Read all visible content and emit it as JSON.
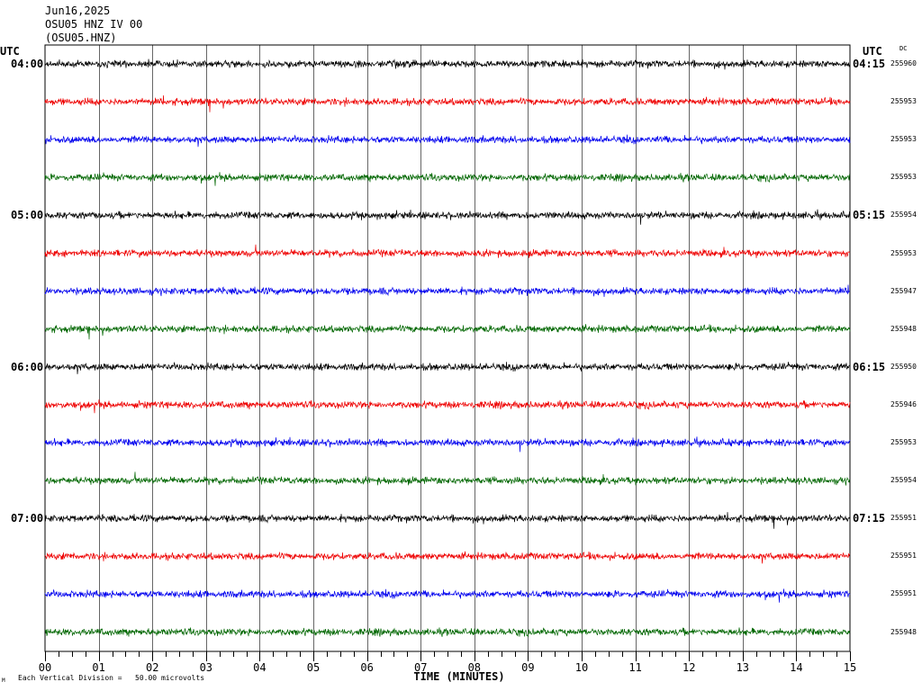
{
  "header": {
    "date": "Jun16,2025",
    "station": "OSU05 HNZ IV 00",
    "code": "(OSU05.HNZ)"
  },
  "left_axis_label": "UTC",
  "right_axis_label": "UTC",
  "dc_label": "DC",
  "footer": {
    "left_mark": "M",
    "scale_text": "Each Vertical Division =   50.00 microvolts"
  },
  "chart_data": {
    "type": "line",
    "xlabel": "TIME (MINUTES)",
    "x_ticks": [
      "00",
      "01",
      "02",
      "03",
      "04",
      "05",
      "06",
      "07",
      "08",
      "09",
      "10",
      "11",
      "12",
      "13",
      "14",
      "15"
    ],
    "xlim": [
      0,
      15
    ],
    "traces_per_hour": 4,
    "trace_colors": [
      "#000000",
      "#ee0000",
      "#0000ee",
      "#006600"
    ],
    "left_time_labels": [
      "04:00",
      "05:00",
      "06:00",
      "07:00"
    ],
    "right_time_labels": [
      "04:15",
      "05:15",
      "06:15",
      "07:15"
    ],
    "dc_offsets": [
      255960,
      255953,
      255953,
      255953,
      255954,
      255953,
      255947,
      255948,
      255950,
      255946,
      255953,
      255954,
      255951,
      255951,
      255951,
      255948
    ],
    "grid": true
  }
}
